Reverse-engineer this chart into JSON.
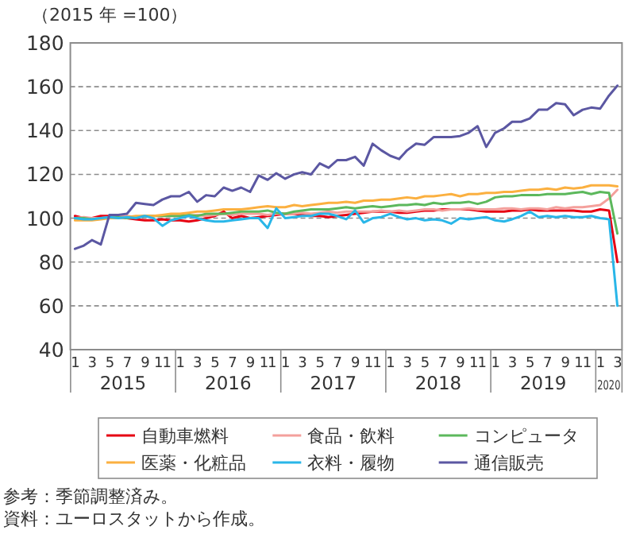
{
  "chart_data": {
    "type": "line",
    "ylabel": "（2015 年 =100）",
    "x": [
      "2015-01",
      "2015-02",
      "2015-03",
      "2015-04",
      "2015-05",
      "2015-06",
      "2015-07",
      "2015-08",
      "2015-09",
      "2015-10",
      "2015-11",
      "2015-12",
      "2016-01",
      "2016-02",
      "2016-03",
      "2016-04",
      "2016-05",
      "2016-06",
      "2016-07",
      "2016-08",
      "2016-09",
      "2016-10",
      "2016-11",
      "2016-12",
      "2017-01",
      "2017-02",
      "2017-03",
      "2017-04",
      "2017-05",
      "2017-06",
      "2017-07",
      "2017-08",
      "2017-09",
      "2017-10",
      "2017-11",
      "2017-12",
      "2018-01",
      "2018-02",
      "2018-03",
      "2018-04",
      "2018-05",
      "2018-06",
      "2018-07",
      "2018-08",
      "2018-09",
      "2018-10",
      "2018-11",
      "2018-12",
      "2019-01",
      "2019-02",
      "2019-03",
      "2019-04",
      "2019-05",
      "2019-06",
      "2019-07",
      "2019-08",
      "2019-09",
      "2019-10",
      "2019-11",
      "2019-12",
      "2020-01",
      "2020-02",
      "2020-03"
    ],
    "xlim": [
      "2014-12-16",
      "2020-03-17"
    ],
    "xticks": [
      {
        "value": "2015-01",
        "label": "1"
      },
      {
        "value": "2015-03",
        "label": "3"
      },
      {
        "value": "2015-05",
        "label": "5"
      },
      {
        "value": "2015-07",
        "label": "7"
      },
      {
        "value": "2015-09",
        "label": "9"
      },
      {
        "value": "2015-11",
        "label": "11"
      },
      {
        "value": "2016-01",
        "label": "1"
      },
      {
        "value": "2016-03",
        "label": "3"
      },
      {
        "value": "2016-05",
        "label": "5"
      },
      {
        "value": "2016-07",
        "label": "7"
      },
      {
        "value": "2016-09",
        "label": "9"
      },
      {
        "value": "2016-11",
        "label": "11"
      },
      {
        "value": "2017-01",
        "label": "1"
      },
      {
        "value": "2017-03",
        "label": "3"
      },
      {
        "value": "2017-05",
        "label": "5"
      },
      {
        "value": "2017-07",
        "label": "7"
      },
      {
        "value": "2017-09",
        "label": "9"
      },
      {
        "value": "2017-11",
        "label": "11"
      },
      {
        "value": "2018-01",
        "label": "1"
      },
      {
        "value": "2018-03",
        "label": "3"
      },
      {
        "value": "2018-05",
        "label": "5"
      },
      {
        "value": "2018-07",
        "label": "7"
      },
      {
        "value": "2018-09",
        "label": "9"
      },
      {
        "value": "2018-11",
        "label": "11"
      },
      {
        "value": "2019-01",
        "label": "1"
      },
      {
        "value": "2019-03",
        "label": "3"
      },
      {
        "value": "2019-05",
        "label": "5"
      },
      {
        "value": "2019-07",
        "label": "7"
      },
      {
        "value": "2019-09",
        "label": "9"
      },
      {
        "value": "2019-11",
        "label": "11"
      },
      {
        "value": "2020-01",
        "label": "1"
      },
      {
        "value": "2020-03",
        "label": "3"
      }
    ],
    "ylim": [
      40,
      180
    ],
    "yticks": [
      40,
      60,
      80,
      100,
      120,
      140,
      160,
      180
    ],
    "grid": "y",
    "legend": "bottom",
    "series": [
      {
        "name": "自動車燃料",
        "color": "#e60012",
        "values": [
          101,
          100,
          100,
          101,
          101,
          100.5,
          100,
          99.5,
          99,
          99,
          99.5,
          99,
          99,
          98.5,
          99,
          100,
          101,
          103,
          100,
          101,
          100,
          100.5,
          101,
          101.5,
          102,
          102,
          101.5,
          101,
          101,
          100.5,
          101,
          101.5,
          102,
          102.5,
          103,
          103,
          103,
          102.5,
          102.5,
          103,
          103.5,
          103.5,
          104,
          104,
          104,
          104,
          103.5,
          103,
          103,
          103,
          103.5,
          103.5,
          104,
          103.5,
          103.5,
          103.5,
          103.5,
          103.5,
          103,
          103,
          104,
          103.5,
          80
        ]
      },
      {
        "name": "食品・飲料",
        "color": "#f4a09c",
        "values": [
          100,
          100.5,
          100,
          100,
          100.5,
          100.5,
          101,
          100.5,
          101,
          101,
          101,
          101,
          101,
          101,
          101.5,
          101,
          101.5,
          102,
          101.5,
          102,
          102,
          102,
          101.5,
          102,
          102,
          102,
          102.5,
          102,
          102.5,
          103,
          102.5,
          103,
          103,
          103,
          103,
          103.5,
          103,
          103.5,
          103,
          103.5,
          104,
          104,
          103.5,
          104,
          104,
          104.5,
          104,
          104,
          104,
          104.5,
          104.5,
          104,
          104.5,
          104.5,
          104,
          105,
          104.5,
          105,
          105,
          105.5,
          106,
          109,
          113
        ]
      },
      {
        "name": "コンピュータ",
        "color": "#5cb85c",
        "values": [
          100,
          100,
          99.5,
          100,
          100,
          100.5,
          100,
          100.5,
          101,
          101,
          101,
          101,
          101,
          101.5,
          101,
          102,
          102,
          102,
          102.5,
          103,
          103,
          103,
          103.5,
          102.5,
          102,
          103,
          103.5,
          104,
          104,
          104,
          104.5,
          105,
          104.5,
          105,
          105.5,
          105,
          105.5,
          106,
          106,
          106.5,
          106,
          107,
          106.5,
          107,
          107,
          107.5,
          106.5,
          107.5,
          109.5,
          110,
          110,
          110.5,
          110.5,
          110.5,
          111,
          111,
          111,
          111.5,
          112,
          111,
          112,
          111.5,
          93
        ]
      },
      {
        "name": "医薬・化粧品",
        "color": "#fbb040",
        "values": [
          99,
          99,
          99,
          99.5,
          100,
          100,
          100.5,
          101,
          101,
          101,
          101.5,
          102,
          102,
          102.5,
          103,
          103,
          103.5,
          104,
          104,
          104,
          104.5,
          105,
          105.5,
          105,
          105,
          106,
          105.5,
          106,
          106.5,
          107,
          107,
          107.5,
          107,
          108,
          108,
          108.5,
          108.5,
          109,
          109.5,
          109,
          110,
          110,
          110.5,
          111,
          110,
          111,
          111,
          111.5,
          111.5,
          112,
          112,
          112.5,
          113,
          113,
          113.5,
          113,
          114,
          113.5,
          114,
          115,
          115,
          115,
          114.5
        ]
      },
      {
        "name": "衣料・履物",
        "color": "#29b6e8",
        "values": [
          100,
          99.5,
          99.5,
          100,
          100.5,
          100,
          100.5,
          100,
          101,
          100,
          96.5,
          99,
          100,
          101,
          100,
          99,
          98.5,
          98.5,
          99,
          99.5,
          100,
          100,
          95.5,
          104.5,
          100,
          100.5,
          101,
          101,
          102,
          102,
          101,
          99.5,
          103.5,
          98,
          100,
          100.5,
          102,
          100.5,
          99.5,
          100,
          99,
          99.5,
          99,
          97.5,
          100,
          99.5,
          100,
          100.5,
          99,
          98.5,
          99.5,
          101,
          103,
          100.5,
          101,
          100.5,
          101,
          100.5,
          100.5,
          101,
          100,
          99.5,
          60
        ]
      },
      {
        "name": "通信販売",
        "color": "#5b57a2",
        "values": [
          86,
          87.5,
          90,
          88,
          101.5,
          101.5,
          102,
          107,
          106.5,
          106,
          108.5,
          110,
          110,
          112,
          107.5,
          110.5,
          110,
          114,
          112.5,
          114,
          112,
          119.5,
          117.5,
          120.5,
          118,
          120,
          121,
          120,
          125,
          123,
          126.5,
          126.5,
          128,
          124,
          134,
          131,
          128.5,
          127,
          131,
          134,
          133.5,
          137,
          137,
          137,
          137.5,
          139,
          142,
          132.5,
          139,
          141,
          144,
          144,
          145.5,
          149.5,
          149.5,
          152.5,
          152,
          147,
          149.5,
          150.5,
          150,
          156,
          160.5
        ]
      }
    ],
    "annotations": [
      "2015",
      "2016",
      "2017",
      "2018",
      "2019",
      "2020",
      "参考：季節調整済み。",
      "資料：ユーロスタットから作成。"
    ]
  }
}
